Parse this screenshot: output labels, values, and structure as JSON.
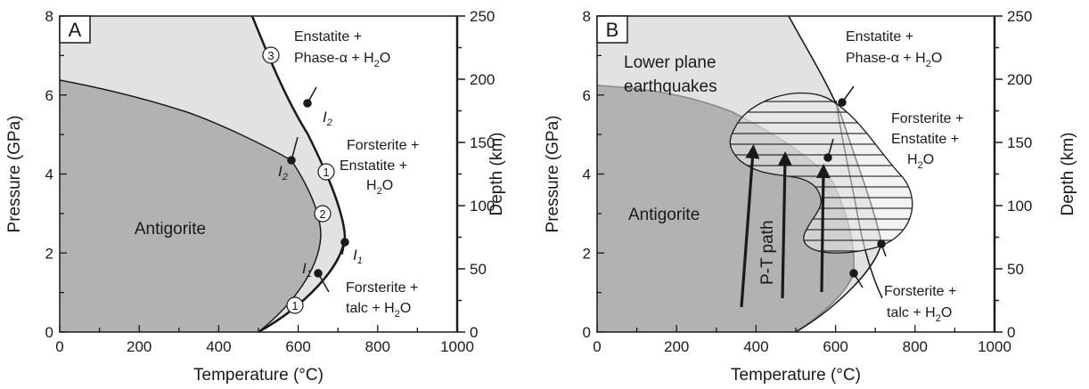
{
  "colors": {
    "stable_light": "#e2e2e2",
    "antigorite_dark": "#b2b2b2",
    "earthquake_zone": "#e9e9e9",
    "line": "#1a1a1a",
    "boundary_gray": "#888888"
  },
  "axes": {
    "x_title": "Temperature (°C)",
    "y_title": "Pressure (GPa)",
    "y2_title": "Depth (km)",
    "x_ticks": [
      "0",
      "200",
      "400",
      "600",
      "800",
      "1000"
    ],
    "y_ticks": [
      "0",
      "2",
      "4",
      "6",
      "8"
    ],
    "y2_ticks": [
      "0",
      "50",
      "100",
      "150",
      "200",
      "250"
    ]
  },
  "panel_a": {
    "letter": "A",
    "antigorite": "Antigorite",
    "field_en_phase": [
      "Enstatite +",
      "Phase-α + H",
      "2",
      "O"
    ],
    "field_fo_en": [
      "Forsterite +",
      "Enstatite +",
      "H",
      "2",
      "O"
    ],
    "field_fo_talc": [
      "Forsterite +",
      "talc + H",
      "2",
      "O"
    ],
    "i1": "I",
    "i1_sub": "1",
    "i2": "I",
    "i2_sub": "2",
    "circle_1": "1",
    "circle_2": "2",
    "circle_3": "3"
  },
  "panel_b": {
    "letter": "B",
    "antigorite": "Antigorite",
    "lower_plane": [
      "Lower plane",
      "earthquakes"
    ],
    "pt_path": "P-T path",
    "field_en_phase": [
      "Enstatite +",
      "Phase-α + H",
      "2",
      "O"
    ],
    "field_fo_en": [
      "Forsterite +",
      "Enstatite +",
      "H",
      "2",
      "O"
    ],
    "field_fo_talc": [
      "Forsterite +",
      "talc + H",
      "2",
      "O"
    ]
  }
}
